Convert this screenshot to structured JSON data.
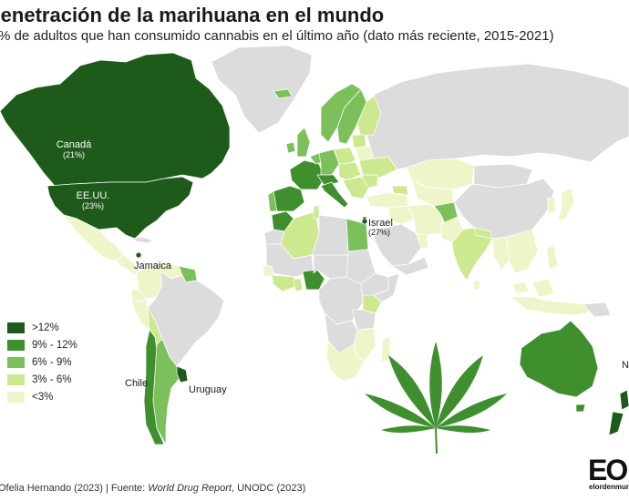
{
  "title": "Penetración de la marihuana en el mundo",
  "subtitle": "% de adultos que han consumido cannabis en el último año (dato más reciente, 2015-2021)",
  "colors": {
    "gt12": "#1e5a1a",
    "c9_12": "#3f8f2f",
    "c6_9": "#7cc05c",
    "c3_6": "#cce98f",
    "lt3": "#eef5c9",
    "nodata": "#dcdcdc"
  },
  "legend": [
    {
      "label": ">12%",
      "color": "#1e5a1a"
    },
    {
      "label": "9% - 12%",
      "color": "#3f8f2f"
    },
    {
      "label": "6% - 9%",
      "color": "#7cc05c"
    },
    {
      "label": "3% - 6%",
      "color": "#cce98f"
    },
    {
      "label": "<3%",
      "color": "#eef5c9"
    }
  ],
  "labels": {
    "canada": {
      "name": "Canadá",
      "value": "(21%)"
    },
    "usa": {
      "name": "EE.UU.",
      "value": "(23%)"
    },
    "jamaica": {
      "name": "Jamaica"
    },
    "chile": {
      "name": "Chile"
    },
    "uruguay": {
      "name": "Uruguay"
    },
    "israel": {
      "name": "Israel",
      "value": "(27%)"
    },
    "nz": {
      "name": "Nueva Zelanda"
    }
  },
  "footer": {
    "author": "Ofelia Hernando (2023) | Fuente: ",
    "source_title": "World Drug Report",
    "source_rest": ", UNODC (2023)"
  },
  "logo": {
    "mark": "EO",
    "text": "elordenmundial"
  }
}
